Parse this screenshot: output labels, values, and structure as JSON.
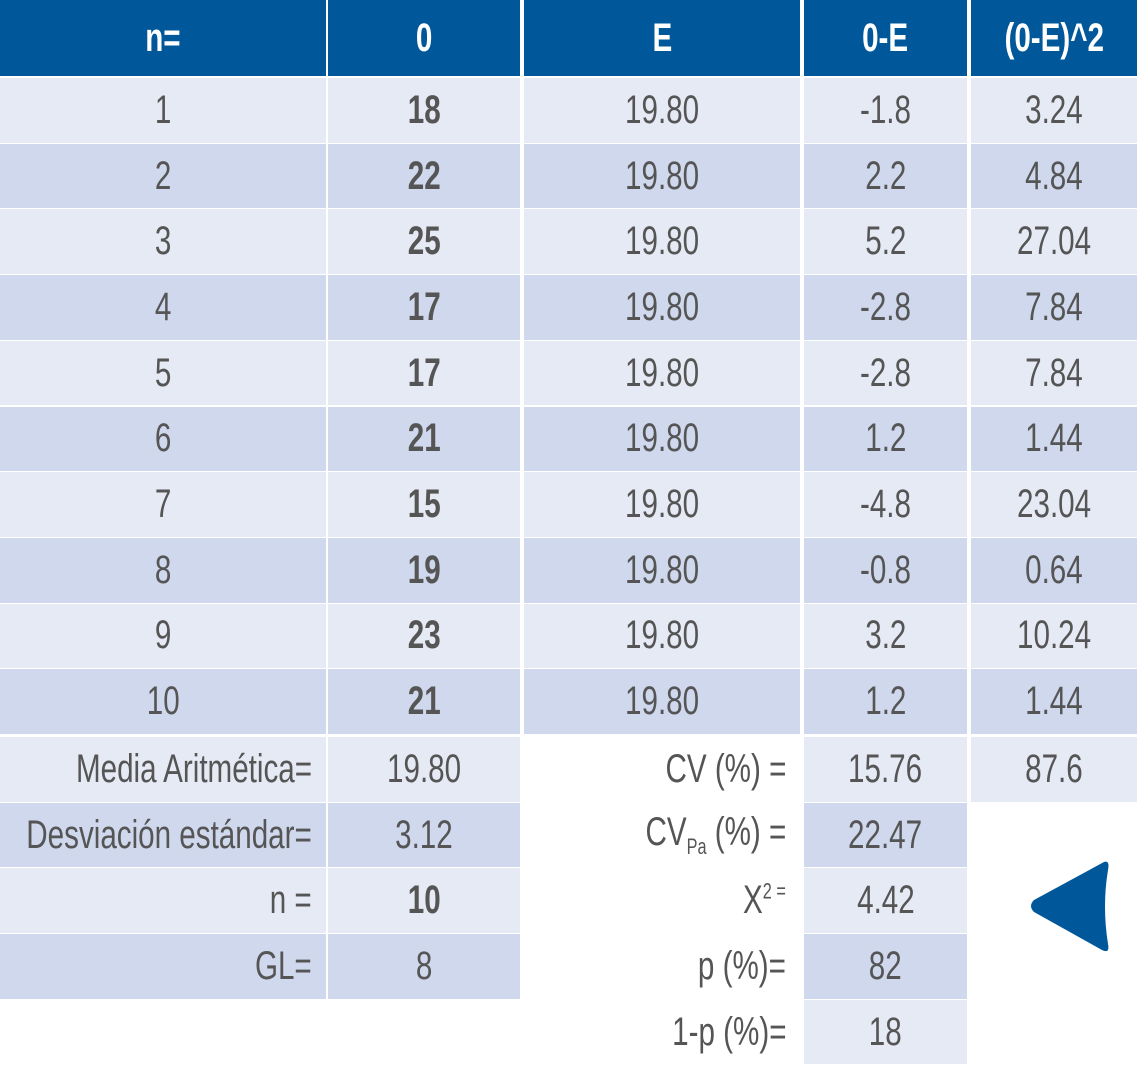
{
  "colors": {
    "header": "#00589a",
    "row_light": "#e6eaf5",
    "row_dark": "#cfd8ec",
    "text": "#555555",
    "arrow": "#00589a"
  },
  "headers": [
    "n=",
    "0",
    "E",
    "0-E",
    "(0-E)^2"
  ],
  "rows": [
    [
      "1",
      "18",
      "19.80",
      "-1.8",
      "3.24"
    ],
    [
      "2",
      "22",
      "19.80",
      "2.2",
      "4.84"
    ],
    [
      "3",
      "25",
      "19.80",
      "5.2",
      "27.04"
    ],
    [
      "4",
      "17",
      "19.80",
      "-2.8",
      "7.84"
    ],
    [
      "5",
      "17",
      "19.80",
      "-2.8",
      "7.84"
    ],
    [
      "6",
      "21",
      "19.80",
      "1.2",
      "1.44"
    ],
    [
      "7",
      "15",
      "19.80",
      "-4.8",
      "23.04"
    ],
    [
      "8",
      "19",
      "19.80",
      "-0.8",
      "0.64"
    ],
    [
      "9",
      "23",
      "19.80",
      "3.2",
      "10.24"
    ],
    [
      "10",
      "21",
      "19.80",
      "1.2",
      "1.44"
    ]
  ],
  "sum_of_squares": "87.6",
  "stats_left": [
    {
      "label": "Media Aritmética=",
      "value": "19.80",
      "bold": false
    },
    {
      "label": "Desviación estándar=",
      "value": "3.12",
      "bold": false
    },
    {
      "label": "n =",
      "value": "10",
      "bold": true
    },
    {
      "label": "GL=",
      "value": "8",
      "bold": false
    }
  ],
  "stats_right": [
    {
      "label": "CV (%) =",
      "value": "15.76"
    },
    {
      "label": "CV",
      "sub": "Pa",
      "label_rest": " (%) =",
      "value": "22.47"
    },
    {
      "label": "X",
      "sup": "2 =",
      "value": "4.42"
    },
    {
      "label": "p (%)=",
      "value": "82"
    },
    {
      "label": "1-p (%)=",
      "value": "18"
    }
  ],
  "arrow_icon": "triangle-left-icon"
}
